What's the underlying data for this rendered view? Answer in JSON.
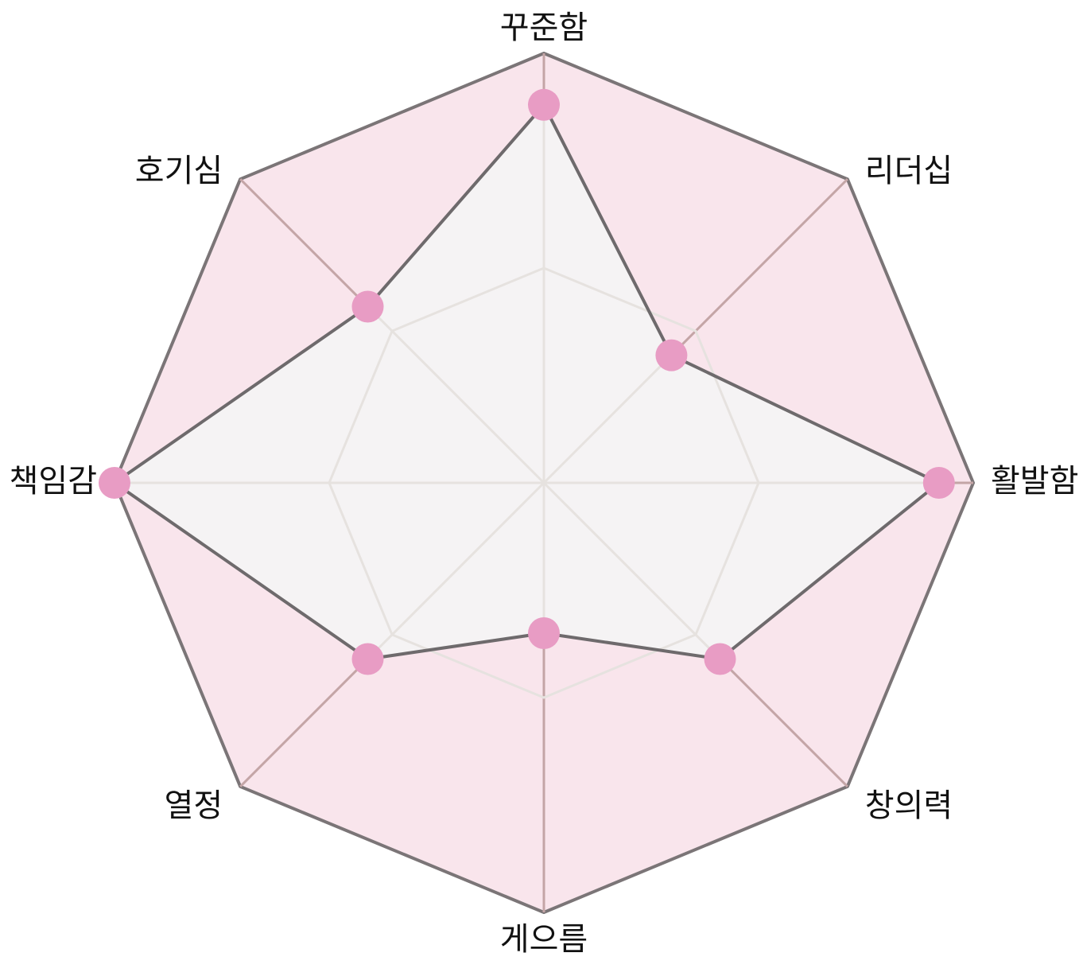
{
  "chart_data": {
    "type": "radar",
    "axes": [
      "꾸준함",
      "리더십",
      "활발함",
      "창의력",
      "게으름",
      "열정",
      "책임감",
      "호기심"
    ],
    "values": [
      0.88,
      0.42,
      0.92,
      0.58,
      0.35,
      0.58,
      1.0,
      0.58
    ],
    "range": [
      0,
      1
    ],
    "grid_levels": 2,
    "grid": true,
    "colors": {
      "outer_fill": "#f9e5ec",
      "outer_stroke": "#7b7577",
      "spoke_outer": "#c4a5a6",
      "spoke_inner": "#e6e2df",
      "data_fill": "#f5f3f4",
      "data_stroke": "#6e6a6c",
      "point": "#e89cc4"
    }
  }
}
